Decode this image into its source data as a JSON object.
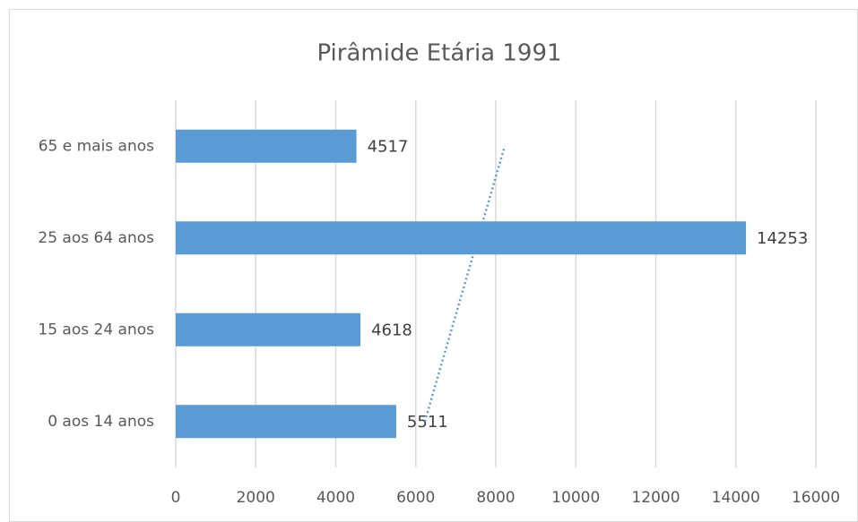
{
  "chart_data": {
    "type": "bar",
    "orientation": "horizontal",
    "title": "Pirâmide Etária 1991",
    "categories": [
      "0 aos 14 anos",
      "15 aos 24 anos",
      "25 aos 64 anos",
      "65 e mais anos"
    ],
    "values": [
      5511,
      4618,
      14253,
      4517
    ],
    "color": "#5b9bd5",
    "xlim": [
      0,
      16000
    ],
    "xticks": [
      0,
      2000,
      4000,
      6000,
      8000,
      10000,
      12000,
      14000,
      16000
    ],
    "grid": true,
    "trendline": "linear",
    "trendline_color": "#5b9bd5"
  }
}
